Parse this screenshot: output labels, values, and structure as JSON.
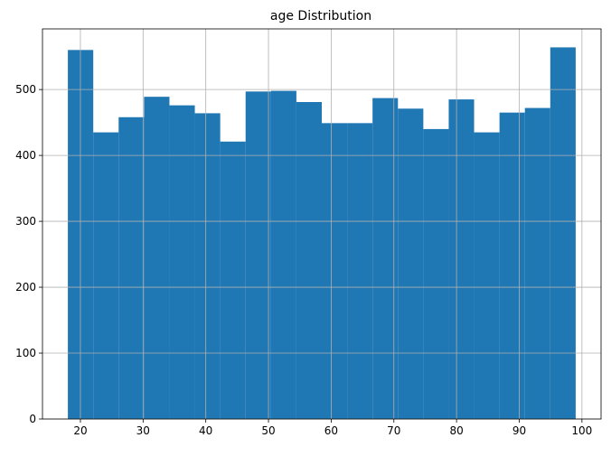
{
  "chart_data": {
    "type": "bar",
    "title": "age Distribution",
    "xlabel": "",
    "ylabel": "",
    "grid": true,
    "color": "#1f77b4",
    "xlim": [
      13.95,
      103.05
    ],
    "ylim": [
      0,
      592
    ],
    "xticks": [
      20,
      30,
      40,
      50,
      60,
      70,
      80,
      90,
      100
    ],
    "yticks": [
      0,
      100,
      200,
      300,
      400,
      500
    ],
    "bin_edges": [
      18,
      22.05,
      26.1,
      30.15,
      34.2,
      38.25,
      42.3,
      46.35,
      50.4,
      54.45,
      58.5,
      62.55,
      66.6,
      70.65,
      74.7,
      78.75,
      82.8,
      86.85,
      90.9,
      94.95,
      99
    ],
    "values": [
      560,
      435,
      458,
      489,
      476,
      464,
      421,
      497,
      498,
      481,
      449,
      449,
      487,
      471,
      440,
      485,
      435,
      465,
      472,
      564
    ]
  }
}
